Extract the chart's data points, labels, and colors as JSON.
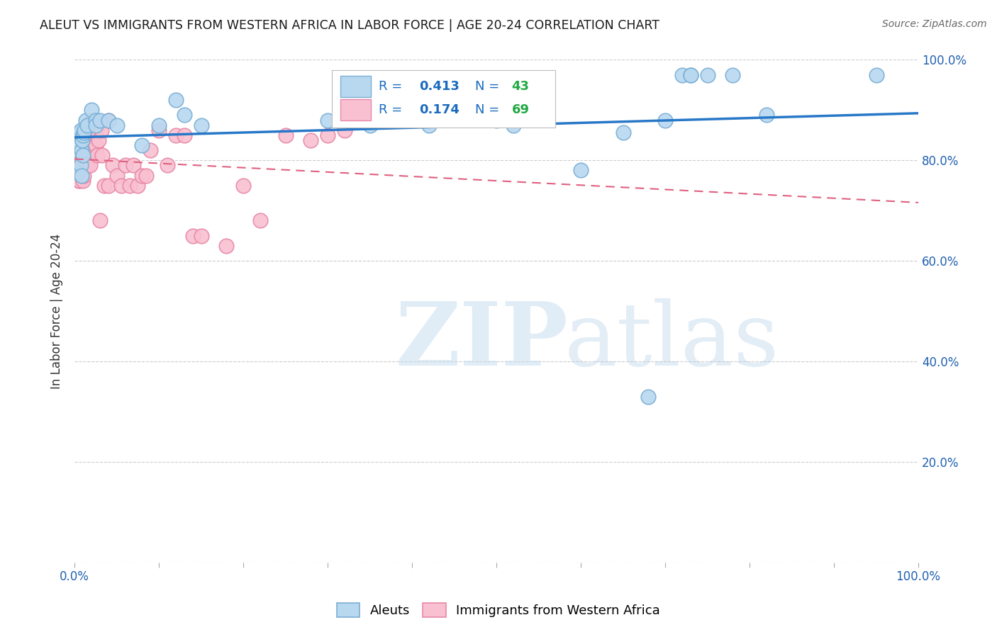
{
  "title": "ALEUT VS IMMIGRANTS FROM WESTERN AFRICA IN LABOR FORCE | AGE 20-24 CORRELATION CHART",
  "source": "Source: ZipAtlas.com",
  "ylabel": "In Labor Force | Age 20-24",
  "xlim": [
    0,
    1.0
  ],
  "ylim": [
    0,
    1.0
  ],
  "background_color": "#ffffff",
  "grid_color": "#cccccc",
  "aleuts_color": "#b8d8f0",
  "aleuts_edge_color": "#7aafd4",
  "immigrants_color": "#f8c0d0",
  "immigrants_edge_color": "#e888a8",
  "aleuts_line_color": "#2878c8",
  "immigrants_line_color": "#e06080",
  "legend_R_color": "#1a6bbf",
  "legend_N_color": "#22aa44",
  "aleuts_R": 0.413,
  "aleuts_N": 43,
  "immigrants_R": 0.174,
  "immigrants_N": 69,
  "aleuts_x": [
    0.003,
    0.004,
    0.005,
    0.006,
    0.006,
    0.007,
    0.007,
    0.008,
    0.008,
    0.009,
    0.01,
    0.01,
    0.011,
    0.012,
    0.013,
    0.015,
    0.02,
    0.025,
    0.025,
    0.03,
    0.04,
    0.05,
    0.08,
    0.1,
    0.12,
    0.13,
    0.15,
    0.3,
    0.35,
    0.42,
    0.5,
    0.52,
    0.6,
    0.65,
    0.68,
    0.7,
    0.72,
    0.73,
    0.73,
    0.75,
    0.78,
    0.82,
    0.95
  ],
  "aleuts_y": [
    0.775,
    0.82,
    0.83,
    0.855,
    0.83,
    0.86,
    0.79,
    0.82,
    0.77,
    0.84,
    0.85,
    0.81,
    0.855,
    0.86,
    0.88,
    0.87,
    0.9,
    0.88,
    0.87,
    0.88,
    0.88,
    0.87,
    0.83,
    0.87,
    0.92,
    0.89,
    0.87,
    0.88,
    0.87,
    0.87,
    0.88,
    0.87,
    0.78,
    0.855,
    0.33,
    0.88,
    0.97,
    0.97,
    0.97,
    0.97,
    0.97,
    0.89,
    0.97
  ],
  "immigrants_x": [
    0.003,
    0.003,
    0.004,
    0.004,
    0.005,
    0.005,
    0.005,
    0.006,
    0.006,
    0.007,
    0.007,
    0.007,
    0.008,
    0.008,
    0.008,
    0.009,
    0.009,
    0.01,
    0.01,
    0.01,
    0.011,
    0.011,
    0.012,
    0.012,
    0.013,
    0.014,
    0.015,
    0.015,
    0.016,
    0.017,
    0.018,
    0.019,
    0.02,
    0.02,
    0.021,
    0.022,
    0.025,
    0.026,
    0.027,
    0.028,
    0.03,
    0.032,
    0.033,
    0.035,
    0.04,
    0.04,
    0.045,
    0.05,
    0.055,
    0.06,
    0.065,
    0.07,
    0.075,
    0.08,
    0.085,
    0.09,
    0.1,
    0.11,
    0.12,
    0.13,
    0.14,
    0.15,
    0.18,
    0.2,
    0.22,
    0.25,
    0.28,
    0.3,
    0.32
  ],
  "immigrants_y": [
    0.77,
    0.82,
    0.79,
    0.81,
    0.77,
    0.83,
    0.76,
    0.8,
    0.76,
    0.79,
    0.82,
    0.81,
    0.78,
    0.8,
    0.83,
    0.82,
    0.79,
    0.76,
    0.81,
    0.82,
    0.83,
    0.77,
    0.82,
    0.8,
    0.81,
    0.83,
    0.79,
    0.84,
    0.81,
    0.82,
    0.79,
    0.86,
    0.83,
    0.82,
    0.88,
    0.88,
    0.83,
    0.86,
    0.81,
    0.84,
    0.68,
    0.86,
    0.81,
    0.75,
    0.88,
    0.75,
    0.79,
    0.77,
    0.75,
    0.79,
    0.75,
    0.79,
    0.75,
    0.77,
    0.77,
    0.82,
    0.86,
    0.79,
    0.85,
    0.85,
    0.65,
    0.65,
    0.63,
    0.75,
    0.68,
    0.85,
    0.84,
    0.85,
    0.86
  ]
}
